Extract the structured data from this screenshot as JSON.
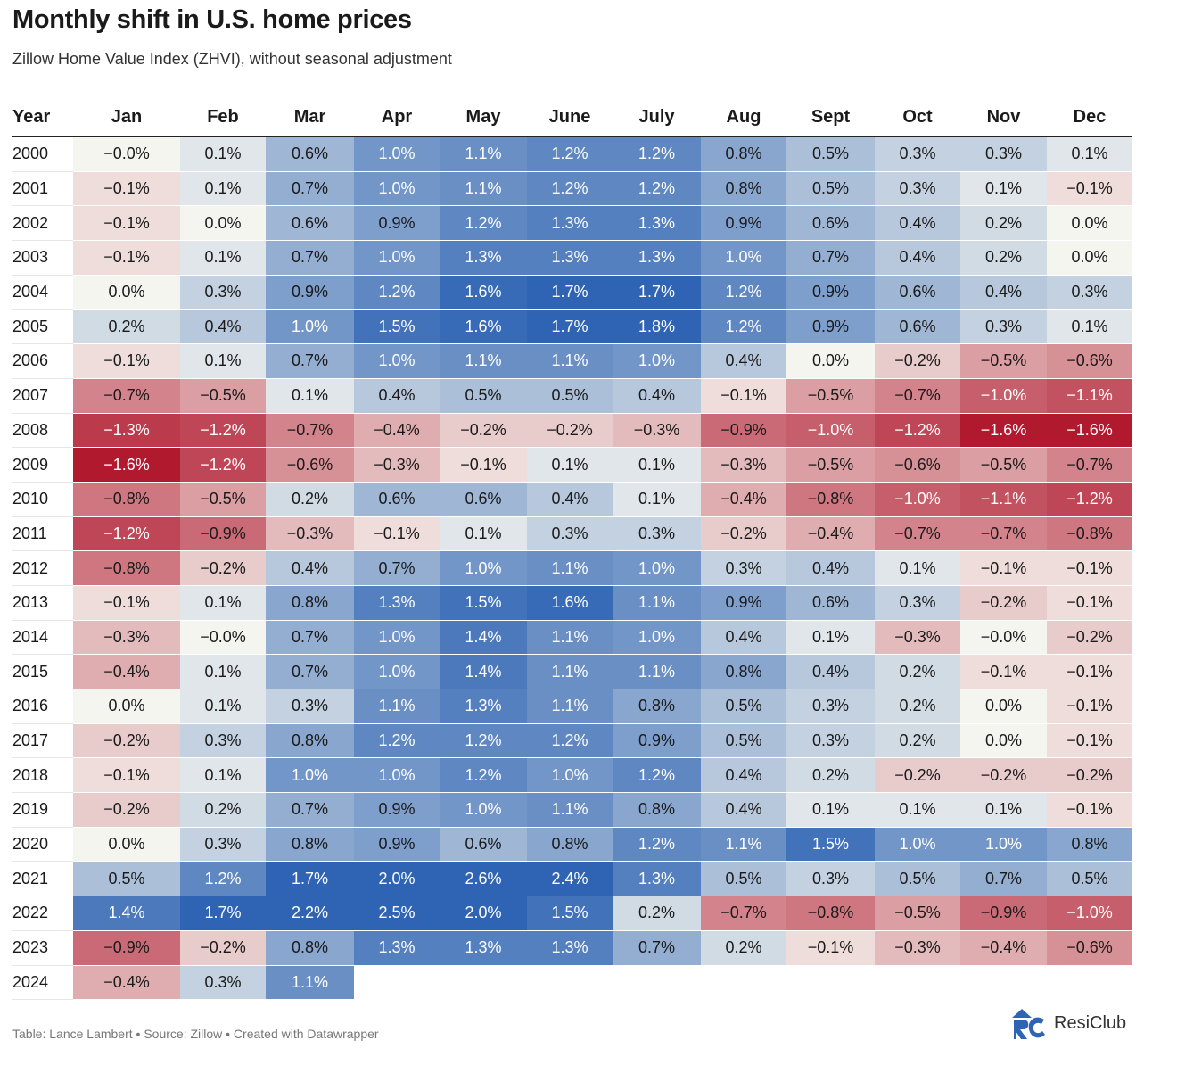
{
  "title": "Monthly shift in U.S. home prices",
  "subtitle": "Zillow Home Value Index (ZHVI), without seasonal adjustment",
  "footer": "Table: Lance Lambert • Source: Zillow • Created with Datawrapper",
  "logo_text": "ResiClub",
  "colors": {
    "max_positive": "#2f64b4",
    "neutral": "#f5f5ef",
    "max_negative": "#b1192f"
  },
  "chart_data": {
    "type": "heatmap",
    "row_header": "Year",
    "columns": [
      "Jan",
      "Feb",
      "Mar",
      "Apr",
      "May",
      "June",
      "July",
      "Aug",
      "Sept",
      "Oct",
      "Nov",
      "Dec"
    ],
    "rows": [
      {
        "year": "2000",
        "values": [
          "−0.0%",
          "0.1%",
          "0.6%",
          "1.0%",
          "1.1%",
          "1.2%",
          "1.2%",
          "0.8%",
          "0.5%",
          "0.3%",
          "0.3%",
          "0.1%"
        ]
      },
      {
        "year": "2001",
        "values": [
          "−0.1%",
          "0.1%",
          "0.7%",
          "1.0%",
          "1.1%",
          "1.2%",
          "1.2%",
          "0.8%",
          "0.5%",
          "0.3%",
          "0.1%",
          "−0.1%"
        ]
      },
      {
        "year": "2002",
        "values": [
          "−0.1%",
          "0.0%",
          "0.6%",
          "0.9%",
          "1.2%",
          "1.3%",
          "1.3%",
          "0.9%",
          "0.6%",
          "0.4%",
          "0.2%",
          "0.0%"
        ]
      },
      {
        "year": "2003",
        "values": [
          "−0.1%",
          "0.1%",
          "0.7%",
          "1.0%",
          "1.3%",
          "1.3%",
          "1.3%",
          "1.0%",
          "0.7%",
          "0.4%",
          "0.2%",
          "0.0%"
        ]
      },
      {
        "year": "2004",
        "values": [
          "0.0%",
          "0.3%",
          "0.9%",
          "1.2%",
          "1.6%",
          "1.7%",
          "1.7%",
          "1.2%",
          "0.9%",
          "0.6%",
          "0.4%",
          "0.3%"
        ]
      },
      {
        "year": "2005",
        "values": [
          "0.2%",
          "0.4%",
          "1.0%",
          "1.5%",
          "1.6%",
          "1.7%",
          "1.8%",
          "1.2%",
          "0.9%",
          "0.6%",
          "0.3%",
          "0.1%"
        ]
      },
      {
        "year": "2006",
        "values": [
          "−0.1%",
          "0.1%",
          "0.7%",
          "1.0%",
          "1.1%",
          "1.1%",
          "1.0%",
          "0.4%",
          "0.0%",
          "−0.2%",
          "−0.5%",
          "−0.6%"
        ]
      },
      {
        "year": "2007",
        "values": [
          "−0.7%",
          "−0.5%",
          "0.1%",
          "0.4%",
          "0.5%",
          "0.5%",
          "0.4%",
          "−0.1%",
          "−0.5%",
          "−0.7%",
          "−1.0%",
          "−1.1%"
        ]
      },
      {
        "year": "2008",
        "values": [
          "−1.3%",
          "−1.2%",
          "−0.7%",
          "−0.4%",
          "−0.2%",
          "−0.2%",
          "−0.3%",
          "−0.9%",
          "−1.0%",
          "−1.2%",
          "−1.6%",
          "−1.6%"
        ]
      },
      {
        "year": "2009",
        "values": [
          "−1.6%",
          "−1.2%",
          "−0.6%",
          "−0.3%",
          "−0.1%",
          "0.1%",
          "0.1%",
          "−0.3%",
          "−0.5%",
          "−0.6%",
          "−0.5%",
          "−0.7%"
        ]
      },
      {
        "year": "2010",
        "values": [
          "−0.8%",
          "−0.5%",
          "0.2%",
          "0.6%",
          "0.6%",
          "0.4%",
          "0.1%",
          "−0.4%",
          "−0.8%",
          "−1.0%",
          "−1.1%",
          "−1.2%"
        ]
      },
      {
        "year": "2011",
        "values": [
          "−1.2%",
          "−0.9%",
          "−0.3%",
          "−0.1%",
          "0.1%",
          "0.3%",
          "0.3%",
          "−0.2%",
          "−0.4%",
          "−0.7%",
          "−0.7%",
          "−0.8%"
        ]
      },
      {
        "year": "2012",
        "values": [
          "−0.8%",
          "−0.2%",
          "0.4%",
          "0.7%",
          "1.0%",
          "1.1%",
          "1.0%",
          "0.3%",
          "0.4%",
          "0.1%",
          "−0.1%",
          "−0.1%"
        ]
      },
      {
        "year": "2013",
        "values": [
          "−0.1%",
          "0.1%",
          "0.8%",
          "1.3%",
          "1.5%",
          "1.6%",
          "1.1%",
          "0.9%",
          "0.6%",
          "0.3%",
          "−0.2%",
          "−0.1%"
        ]
      },
      {
        "year": "2014",
        "values": [
          "−0.3%",
          "−0.0%",
          "0.7%",
          "1.0%",
          "1.4%",
          "1.1%",
          "1.0%",
          "0.4%",
          "0.1%",
          "−0.3%",
          "−0.0%",
          "−0.2%"
        ]
      },
      {
        "year": "2015",
        "values": [
          "−0.4%",
          "0.1%",
          "0.7%",
          "1.0%",
          "1.4%",
          "1.1%",
          "1.1%",
          "0.8%",
          "0.4%",
          "0.2%",
          "−0.1%",
          "−0.1%"
        ]
      },
      {
        "year": "2016",
        "values": [
          "0.0%",
          "0.1%",
          "0.3%",
          "1.1%",
          "1.3%",
          "1.1%",
          "0.8%",
          "0.5%",
          "0.3%",
          "0.2%",
          "0.0%",
          "−0.1%"
        ]
      },
      {
        "year": "2017",
        "values": [
          "−0.2%",
          "0.3%",
          "0.8%",
          "1.2%",
          "1.2%",
          "1.2%",
          "0.9%",
          "0.5%",
          "0.3%",
          "0.2%",
          "0.0%",
          "−0.1%"
        ]
      },
      {
        "year": "2018",
        "values": [
          "−0.1%",
          "0.1%",
          "1.0%",
          "1.0%",
          "1.2%",
          "1.0%",
          "1.2%",
          "0.4%",
          "0.2%",
          "−0.2%",
          "−0.2%",
          "−0.2%"
        ]
      },
      {
        "year": "2019",
        "values": [
          "−0.2%",
          "0.2%",
          "0.7%",
          "0.9%",
          "1.0%",
          "1.1%",
          "0.8%",
          "0.4%",
          "0.1%",
          "0.1%",
          "0.1%",
          "−0.1%"
        ]
      },
      {
        "year": "2020",
        "values": [
          "0.0%",
          "0.3%",
          "0.8%",
          "0.9%",
          "0.6%",
          "0.8%",
          "1.2%",
          "1.1%",
          "1.5%",
          "1.0%",
          "1.0%",
          "0.8%"
        ]
      },
      {
        "year": "2021",
        "values": [
          "0.5%",
          "1.2%",
          "1.7%",
          "2.0%",
          "2.6%",
          "2.4%",
          "1.3%",
          "0.5%",
          "0.3%",
          "0.5%",
          "0.7%",
          "0.5%"
        ]
      },
      {
        "year": "2022",
        "values": [
          "1.4%",
          "1.7%",
          "2.2%",
          "2.5%",
          "2.0%",
          "1.5%",
          "0.2%",
          "−0.7%",
          "−0.8%",
          "−0.5%",
          "−0.9%",
          "−1.0%"
        ]
      },
      {
        "year": "2023",
        "values": [
          "−0.9%",
          "−0.2%",
          "0.8%",
          "1.3%",
          "1.3%",
          "1.3%",
          "0.7%",
          "0.2%",
          "−0.1%",
          "−0.3%",
          "−0.4%",
          "−0.6%"
        ]
      },
      {
        "year": "2024",
        "values": [
          "−0.4%",
          "0.3%",
          "1.1%"
        ]
      }
    ]
  }
}
